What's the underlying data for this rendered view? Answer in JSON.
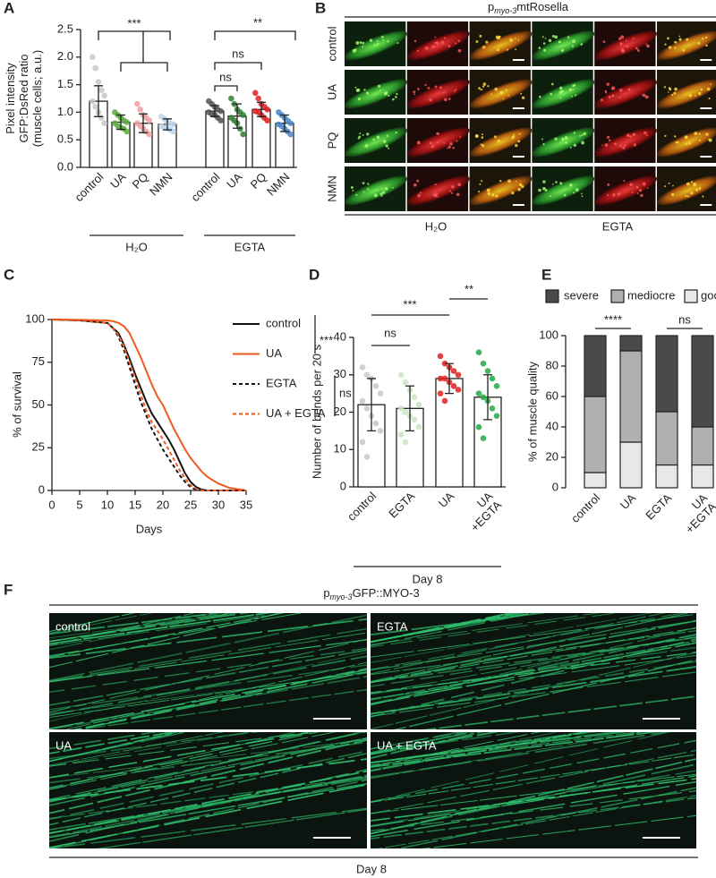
{
  "chart_data": [
    {
      "type": "bar",
      "label": "A",
      "ylabel": [
        "Pixel intensity",
        "GFP:DsRed ratio",
        "(muscle cells; a.u.)"
      ],
      "categories": [
        "control",
        "UA",
        "PQ",
        "NMN",
        "control",
        "UA",
        "PQ",
        "NMN"
      ],
      "values": [
        1.2,
        0.82,
        0.8,
        0.78,
        1.02,
        0.93,
        1.05,
        0.8
      ],
      "errors": [
        0.28,
        0.13,
        0.17,
        0.1,
        0.1,
        0.22,
        0.13,
        0.15
      ],
      "colors": [
        "#c8c8c8",
        "#5aaa3c",
        "#f0a0a0",
        "#b8d4ea",
        "#555555",
        "#2e7d32",
        "#e02020",
        "#4a86c8"
      ],
      "points": [
        [
          2.0,
          1.8,
          1.55,
          1.4,
          1.3,
          1.2,
          1.1,
          1.0,
          0.9,
          0.8
        ],
        [
          1.0,
          0.95,
          0.9,
          0.85,
          0.82,
          0.8,
          0.75,
          0.72,
          0.7,
          0.65
        ],
        [
          1.15,
          1.05,
          0.95,
          0.9,
          0.85,
          0.8,
          0.75,
          0.7,
          0.65,
          0.6
        ],
        [
          0.92,
          0.88,
          0.82,
          0.8,
          0.78,
          0.75,
          0.72,
          0.7,
          0.68,
          0.65
        ],
        [
          1.2,
          1.15,
          1.1,
          1.05,
          1.02,
          1.0,
          0.97,
          0.95,
          0.9,
          0.85
        ],
        [
          1.25,
          1.15,
          1.05,
          1.0,
          0.95,
          0.9,
          0.85,
          0.8,
          0.7,
          0.6
        ],
        [
          1.35,
          1.25,
          1.15,
          1.1,
          1.05,
          1.02,
          1.0,
          0.95,
          0.9,
          0.85
        ],
        [
          1.0,
          0.95,
          0.9,
          0.85,
          0.8,
          0.78,
          0.75,
          0.7,
          0.65,
          0.6
        ]
      ],
      "groups": [
        "H₂O",
        "EGTA"
      ],
      "annotations": [
        "***",
        "**",
        "ns",
        "ns"
      ],
      "ylim": [
        0,
        2.5
      ],
      "yticks": [
        {
          "value": 0,
          "label": "0.0"
        },
        0.5,
        {
          "value": 1,
          "label": "1.0"
        },
        1.5,
        {
          "value": 2,
          "label": "2.0"
        },
        2.5
      ]
    },
    {
      "type": "line",
      "label": "C",
      "xlabel": "Days",
      "ylabel": "% of survival",
      "x": [
        0,
        5,
        10,
        11,
        12,
        13,
        14,
        15,
        16,
        17,
        18,
        19,
        20,
        21,
        22,
        23,
        24,
        25,
        26,
        27,
        28,
        30,
        32,
        34,
        35
      ],
      "series": [
        {
          "name": "control",
          "color": "#111111",
          "dash": false,
          "values": [
            100,
            99.5,
            98,
            95,
            92,
            85,
            77,
            68,
            60,
            52,
            45,
            40,
            35,
            30,
            24,
            17,
            10,
            5,
            2,
            0.5,
            0,
            0,
            0,
            0,
            0
          ]
        },
        {
          "name": "UA",
          "color": "#f05a1e",
          "dash": false,
          "values": [
            100,
            99.8,
            99.5,
            99,
            98,
            96,
            92,
            85,
            78,
            70,
            62,
            55,
            50,
            43,
            36,
            30,
            24,
            19,
            15,
            11,
            8,
            4,
            1.5,
            0.5,
            0
          ]
        },
        {
          "name": "EGTA",
          "color": "#111111",
          "dash": true,
          "values": [
            100,
            99.5,
            98,
            95,
            90,
            82,
            72,
            62,
            52,
            44,
            36,
            30,
            24,
            19,
            14,
            9,
            5,
            2,
            0.5,
            0,
            0,
            0,
            0,
            0,
            0
          ]
        },
        {
          "name": "UA + EGTA",
          "color": "#f05a1e",
          "dash": true,
          "values": [
            100,
            99.5,
            98,
            95,
            91,
            84,
            75,
            66,
            56,
            47,
            40,
            35,
            30,
            24,
            18,
            12,
            7,
            3,
            1,
            0,
            0,
            0,
            0,
            0,
            0
          ]
        }
      ],
      "annotations": [
        "***",
        "ns"
      ],
      "xlim": [
        0,
        35
      ],
      "ylim": [
        0,
        100
      ],
      "xticks": [
        0,
        5,
        10,
        15,
        20,
        25,
        30,
        35
      ],
      "yticks": [
        0,
        25,
        50,
        75,
        100
      ]
    },
    {
      "type": "bar",
      "label": "D",
      "ylabel": "Number of bends per 20 s",
      "categories": [
        [
          "control"
        ],
        [
          "EGTA"
        ],
        [
          "UA"
        ],
        [
          "UA",
          "+EGTA"
        ]
      ],
      "values": [
        22,
        21,
        29,
        24
      ],
      "errors": [
        7,
        6,
        4,
        6
      ],
      "colors": [
        "#c8c8c8",
        "#c8e6c0",
        "#e02020",
        "#22aa44"
      ],
      "points": [
        [
          32,
          30,
          29,
          27,
          25,
          23,
          21,
          19,
          17,
          15,
          12,
          8
        ],
        [
          30,
          28,
          26,
          24,
          22,
          21,
          20,
          19,
          18,
          16,
          14,
          12
        ],
        [
          35,
          33,
          32,
          31,
          30,
          29,
          29,
          28,
          27,
          26,
          25,
          23
        ],
        [
          36,
          33,
          31,
          29,
          27,
          25,
          24,
          23,
          21,
          19,
          16,
          13
        ]
      ],
      "groups": [
        "Day 8"
      ],
      "annotations": [
        "ns",
        "***",
        "**"
      ],
      "ylim": [
        0,
        40
      ],
      "yticks": [
        0,
        10,
        20,
        30,
        40
      ]
    },
    {
      "type": "stacked_bar",
      "label": "E",
      "ylabel": "% of muscle quality",
      "categories": [
        [
          "control"
        ],
        [
          "UA"
        ],
        [
          "EGTA"
        ],
        [
          "UA",
          "+EGTA"
        ]
      ],
      "series": [
        {
          "name": "severe",
          "color": "#4a4a4a",
          "values": [
            40,
            10,
            50,
            60
          ]
        },
        {
          "name": "mediocre",
          "color": "#b0b0b0",
          "values": [
            50,
            60,
            35,
            25
          ]
        },
        {
          "name": "good",
          "color": "#e8e8e8",
          "values": [
            10,
            30,
            15,
            15
          ]
        }
      ],
      "annotations": [
        "****",
        "ns"
      ],
      "ylim": [
        0,
        100
      ],
      "yticks": [
        0,
        20,
        40,
        60,
        80,
        100
      ]
    }
  ],
  "panel_b": {
    "label": "B",
    "title": {
      "prefix": "p",
      "sub": "myo-3",
      "main": "mtRosella"
    },
    "rows": [
      "control",
      "UA",
      "PQ",
      "NMN"
    ],
    "groups": [
      "H₂O",
      "EGTA"
    ]
  },
  "panel_f": {
    "label": "F",
    "title": {
      "prefix": "p",
      "sub": "myo-3",
      "main": "GFP::MYO-3"
    },
    "images": [
      "control",
      "EGTA",
      "UA",
      "UA + EGTA"
    ],
    "footer": "Day 8"
  }
}
